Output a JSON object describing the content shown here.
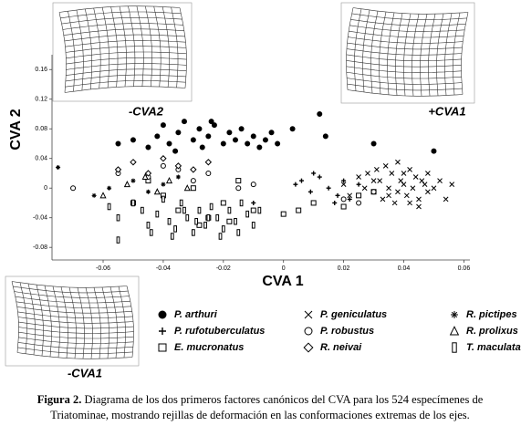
{
  "chart_data": {
    "type": "scatter",
    "xlabel": "CVA 1",
    "ylabel": "CVA 2",
    "xlim": [
      -0.077,
      0.062
    ],
    "ylim": [
      -0.097,
      0.18
    ],
    "xticks": [
      -0.06,
      -0.04,
      -0.02,
      0,
      0.02,
      0.04,
      0.06
    ],
    "yticks": [
      -0.08,
      -0.04,
      0,
      0.04,
      0.08,
      0.12,
      0.16
    ],
    "annotations": [
      "-CVA2",
      "+CVA1",
      "-CVA1"
    ],
    "series": [
      {
        "name": "P. arthuri",
        "marker": "filled-circle",
        "color": "#000000",
        "x": [
          -0.055,
          -0.05,
          -0.045,
          -0.042,
          -0.04,
          -0.038,
          -0.035,
          -0.033,
          -0.03,
          -0.028,
          -0.027,
          -0.025,
          -0.023,
          -0.02,
          -0.018,
          -0.016,
          -0.014,
          -0.012,
          -0.01,
          -0.008,
          -0.006,
          -0.004,
          -0.002,
          0.003,
          0.012,
          0.014,
          0.03,
          0.05,
          -0.036,
          -0.024
        ],
        "y": [
          0.06,
          0.065,
          0.055,
          0.07,
          0.085,
          0.06,
          0.075,
          0.09,
          0.065,
          0.08,
          0.055,
          0.07,
          0.085,
          0.06,
          0.075,
          0.065,
          0.08,
          0.06,
          0.07,
          0.055,
          0.065,
          0.075,
          0.06,
          0.08,
          0.1,
          0.07,
          0.06,
          0.05,
          0.05,
          0.09
        ]
      },
      {
        "name": "P. rufotuberculatus",
        "marker": "plus",
        "color": "#000000",
        "x": [
          0.006,
          0.009,
          0.012,
          0.015,
          0.018,
          0.02,
          0.022,
          0.025,
          0.01,
          0.017,
          -0.01,
          0.004
        ],
        "y": [
          0.01,
          -0.005,
          0.015,
          0.0,
          -0.01,
          0.01,
          -0.015,
          0.005,
          0.02,
          -0.02,
          -0.02,
          0.005
        ]
      },
      {
        "name": "E. mucronatus",
        "marker": "square",
        "color": "#000000",
        "x": [
          -0.05,
          -0.045,
          -0.04,
          -0.035,
          -0.03,
          -0.025,
          -0.02,
          -0.015,
          -0.01,
          0.0,
          0.005,
          0.01,
          0.02,
          0.025,
          0.03,
          -0.028,
          -0.018
        ],
        "y": [
          -0.02,
          0.01,
          -0.01,
          -0.03,
          0.0,
          -0.04,
          -0.02,
          0.01,
          -0.03,
          -0.035,
          -0.03,
          -0.02,
          -0.025,
          -0.01,
          -0.005,
          -0.05,
          -0.045
        ]
      },
      {
        "name": "P. geniculatus",
        "marker": "cross",
        "color": "#000000",
        "x": [
          0.02,
          0.022,
          0.025,
          0.027,
          0.028,
          0.03,
          0.031,
          0.032,
          0.033,
          0.034,
          0.035,
          0.036,
          0.037,
          0.038,
          0.039,
          0.04,
          0.041,
          0.042,
          0.043,
          0.044,
          0.045,
          0.046,
          0.047,
          0.048,
          0.05,
          0.052,
          0.054,
          0.056,
          0.03,
          0.035,
          0.04,
          0.045,
          0.038,
          0.042,
          0.048
        ],
        "y": [
          0.005,
          -0.01,
          0.015,
          0.0,
          0.02,
          -0.005,
          0.025,
          0.01,
          -0.015,
          0.03,
          0.0,
          0.02,
          -0.02,
          0.035,
          0.01,
          0.005,
          -0.01,
          0.025,
          0.0,
          0.015,
          -0.025,
          0.01,
          0.005,
          -0.005,
          0.0,
          0.01,
          -0.015,
          0.005,
          0.01,
          -0.01,
          0.02,
          -0.015,
          -0.005,
          -0.02,
          0.02
        ]
      },
      {
        "name": "P. robustus",
        "marker": "open-circle",
        "color": "#000000",
        "x": [
          -0.07,
          -0.055,
          -0.045,
          -0.04,
          -0.035,
          -0.03,
          -0.025,
          -0.015,
          -0.01,
          0.02,
          0.025,
          0.03
        ],
        "y": [
          0.0,
          0.02,
          0.015,
          0.03,
          0.025,
          0.01,
          0.02,
          0.0,
          0.005,
          -0.015,
          -0.02,
          -0.005
        ]
      },
      {
        "name": "R. neivai",
        "marker": "diamond",
        "color": "#000000",
        "x": [
          -0.055,
          -0.05,
          -0.045,
          -0.04,
          -0.035,
          -0.03,
          -0.025
        ],
        "y": [
          0.025,
          0.035,
          0.02,
          0.04,
          0.03,
          0.025,
          0.035
        ]
      },
      {
        "name": "R. pictipes",
        "marker": "asterisk",
        "color": "#000000",
        "x": [
          -0.075,
          -0.063,
          -0.058,
          -0.05,
          -0.045,
          -0.04,
          -0.035
        ],
        "y": [
          0.028,
          -0.01,
          0.0,
          0.01,
          -0.005,
          0.005,
          0.015
        ]
      },
      {
        "name": "R. prolixus",
        "marker": "triangle",
        "color": "#000000",
        "x": [
          -0.06,
          -0.052,
          -0.046,
          -0.042,
          -0.038,
          -0.032
        ],
        "y": [
          -0.01,
          0.005,
          0.015,
          -0.005,
          0.01,
          0.0
        ]
      },
      {
        "name": "T. maculata",
        "marker": "bar",
        "color": "#000000",
        "x": [
          -0.058,
          -0.055,
          -0.05,
          -0.047,
          -0.045,
          -0.042,
          -0.04,
          -0.038,
          -0.036,
          -0.034,
          -0.032,
          -0.03,
          -0.028,
          -0.026,
          -0.024,
          -0.022,
          -0.02,
          -0.018,
          -0.016,
          -0.014,
          -0.012,
          -0.01,
          -0.008,
          -0.044,
          -0.037,
          -0.029,
          -0.021,
          -0.015,
          -0.033,
          -0.025,
          -0.055
        ],
        "y": [
          -0.025,
          -0.04,
          -0.02,
          -0.03,
          -0.05,
          -0.035,
          -0.015,
          -0.045,
          -0.055,
          -0.02,
          -0.04,
          -0.06,
          -0.03,
          -0.05,
          -0.025,
          -0.04,
          -0.055,
          -0.03,
          -0.045,
          -0.02,
          -0.035,
          -0.05,
          -0.03,
          -0.06,
          -0.065,
          -0.045,
          -0.065,
          -0.06,
          -0.03,
          -0.04,
          -0.07
        ]
      }
    ]
  },
  "caption": {
    "label": "Figura 2.",
    "lines": [
      "Diagrama de los dos primeros factores canónicos del CVA para los 524 especímenes de",
      "Triatominae, mostrando rejillas de deformación en las conformaciones extremas de los ejes."
    ]
  }
}
